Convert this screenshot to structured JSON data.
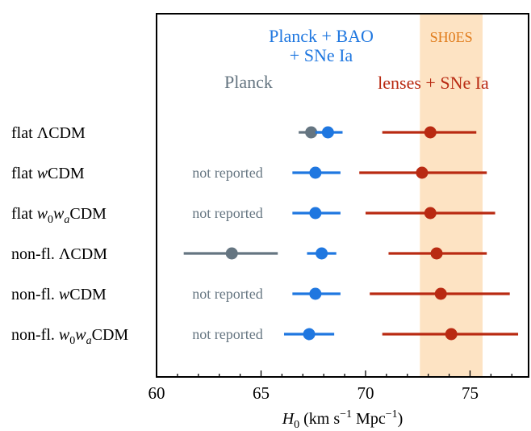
{
  "chart_data": {
    "type": "scatter",
    "xlabel": "H₀ (km s⁻¹ Mpc⁻¹)",
    "xlim": [
      60,
      77.8
    ],
    "xticks": [
      60,
      65,
      70,
      75
    ],
    "categories": [
      "flat ΛCDM",
      "flat wCDM",
      "flat w₀wₐCDM",
      "non-fl. ΛCDM",
      "non-fl. wCDM",
      "non-fl. w₀wₐCDM"
    ],
    "shoes_band": {
      "label": "SH0ES",
      "x0": 72.6,
      "x1": 75.6,
      "color": "#fde3c3",
      "label_color": "#e07b1a"
    },
    "series": [
      {
        "name": "Planck",
        "color": "#657581",
        "points": [
          {
            "category": "flat ΛCDM",
            "x": 67.4,
            "lo": 66.8,
            "hi": 68.0
          },
          {
            "category": "non-fl. ΛCDM",
            "x": 63.6,
            "lo": 61.3,
            "hi": 65.8
          }
        ]
      },
      {
        "name": "Planck + BAO\n+ SNe Ia",
        "color": "#1f77e0",
        "points": [
          {
            "category": "flat ΛCDM",
            "x": 68.2,
            "lo": 67.6,
            "hi": 68.9
          },
          {
            "category": "flat wCDM",
            "x": 67.6,
            "lo": 66.5,
            "hi": 68.8
          },
          {
            "category": "flat w₀wₐCDM",
            "x": 67.6,
            "lo": 66.5,
            "hi": 68.8
          },
          {
            "category": "non-fl. ΛCDM",
            "x": 67.9,
            "lo": 67.2,
            "hi": 68.6
          },
          {
            "category": "non-fl. wCDM",
            "x": 67.6,
            "lo": 66.5,
            "hi": 68.8
          },
          {
            "category": "non-fl. w₀wₐCDM",
            "x": 67.3,
            "lo": 66.1,
            "hi": 68.5
          }
        ]
      },
      {
        "name": "lenses + SNe Ia",
        "color": "#b92a12",
        "points": [
          {
            "category": "flat ΛCDM",
            "x": 73.1,
            "lo": 70.8,
            "hi": 75.3
          },
          {
            "category": "flat wCDM",
            "x": 72.7,
            "lo": 69.7,
            "hi": 75.8
          },
          {
            "category": "flat w₀wₐCDM",
            "x": 73.1,
            "lo": 70.0,
            "hi": 76.2
          },
          {
            "category": "non-fl. ΛCDM",
            "x": 73.4,
            "lo": 71.1,
            "hi": 75.8
          },
          {
            "category": "non-fl. wCDM",
            "x": 73.6,
            "lo": 70.2,
            "hi": 76.9
          },
          {
            "category": "non-fl. w₀wₐCDM",
            "x": 74.1,
            "lo": 70.8,
            "hi": 77.3
          }
        ]
      }
    ],
    "annotations": [
      {
        "category": "flat wCDM",
        "text": "not reported"
      },
      {
        "category": "flat w₀wₐCDM",
        "text": "not reported"
      },
      {
        "category": "non-fl. wCDM",
        "text": "not reported"
      },
      {
        "category": "non-fl. w₀wₐCDM",
        "text": "not reported"
      }
    ]
  }
}
